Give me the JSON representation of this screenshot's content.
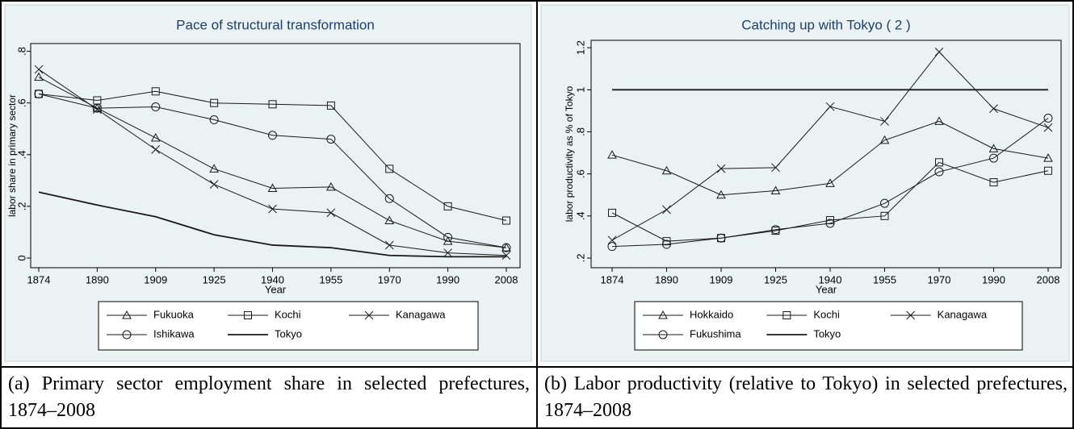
{
  "chart_data": [
    {
      "type": "line",
      "title": "Pace of structural transformation",
      "caption": "(a) Primary sector employment share in selected prefectures, 1874–2008",
      "xlabel": "Year",
      "ylabel": "labor share in primary sector",
      "categories": [
        "1874",
        "1890",
        "1909",
        "1925",
        "1940",
        "1955",
        "1970",
        "1990",
        "2008"
      ],
      "ylim": [
        -0.0375,
        0.83
      ],
      "yticks": [
        0,
        {
          "value": 0.2,
          "label": ".2"
        },
        {
          "value": 0.4,
          "label": ".4"
        },
        {
          "value": 0.6,
          "label": ".6"
        },
        {
          "value": 0.8,
          "label": ".8"
        }
      ],
      "legend": "bottom",
      "series": [
        {
          "name": "Fukuoka",
          "color": "#1a1a1a",
          "marker": "triangle",
          "values": [
            0.7,
            0.58,
            0.465,
            0.345,
            0.27,
            0.275,
            0.145,
            0.065,
            0.04
          ]
        },
        {
          "name": "Kochi",
          "color": "#1a1a1a",
          "marker": "square",
          "values": [
            0.635,
            0.61,
            0.645,
            0.6,
            0.595,
            0.59,
            0.345,
            0.2,
            0.145
          ]
        },
        {
          "name": "Kanagawa",
          "color": "#1a1a1a",
          "marker": "x",
          "values": [
            0.73,
            0.575,
            0.42,
            0.285,
            0.19,
            0.175,
            0.05,
            0.02,
            0.01
          ]
        },
        {
          "name": "Ishikawa",
          "color": "#1a1a1a",
          "marker": "circle",
          "values": [
            0.635,
            0.58,
            0.585,
            0.535,
            0.475,
            0.46,
            0.23,
            0.08,
            0.04
          ]
        },
        {
          "name": "Tokyo",
          "color": "#1a1a1a",
          "marker": "none",
          "values": [
            0.255,
            0.205,
            0.16,
            0.09,
            0.05,
            0.04,
            0.01,
            0.005,
            0.005
          ]
        }
      ]
    },
    {
      "type": "line",
      "title": "Catching up with Tokyo ( 2 )",
      "caption": "(b) Labor productivity (relative to Tokyo) in selected prefectures, 1874–2008",
      "xlabel": "Year",
      "ylabel": "labor productivity as % of Tokyo",
      "categories": [
        "1874",
        "1890",
        "1909",
        "1925",
        "1940",
        "1955",
        "1970",
        "1990",
        "2008"
      ],
      "ylim": [
        0.154,
        1.235
      ],
      "yticks": [
        {
          "value": 0.2,
          "label": ".2"
        },
        {
          "value": 0.4,
          "label": ".4"
        },
        {
          "value": 0.6,
          "label": ".6"
        },
        {
          "value": 0.8,
          "label": ".8"
        },
        1,
        {
          "value": 1.2,
          "label": "1.2"
        }
      ],
      "legend": "bottom",
      "series": [
        {
          "name": "Hokkaido",
          "color": "#1a1a1a",
          "marker": "triangle",
          "values": [
            0.69,
            0.615,
            0.5,
            0.52,
            0.555,
            0.76,
            0.85,
            0.72,
            0.675
          ]
        },
        {
          "name": "Kochi",
          "color": "#1a1a1a",
          "marker": "square",
          "values": [
            0.415,
            0.28,
            0.295,
            0.33,
            0.38,
            0.4,
            0.655,
            0.56,
            0.615
          ]
        },
        {
          "name": "Kanagawa",
          "color": "#1a1a1a",
          "marker": "x",
          "values": [
            0.285,
            0.43,
            0.625,
            0.63,
            0.92,
            0.85,
            1.18,
            0.91,
            0.82
          ]
        },
        {
          "name": "Fukushima",
          "color": "#1a1a1a",
          "marker": "circle",
          "values": [
            0.255,
            0.265,
            0.295,
            0.335,
            0.365,
            0.46,
            0.61,
            0.675,
            0.865
          ]
        },
        {
          "name": "Tokyo",
          "color": "#1a1a1a",
          "marker": "none",
          "values": [
            1,
            1,
            1,
            1,
            1,
            1,
            1,
            1,
            1
          ]
        }
      ]
    }
  ]
}
